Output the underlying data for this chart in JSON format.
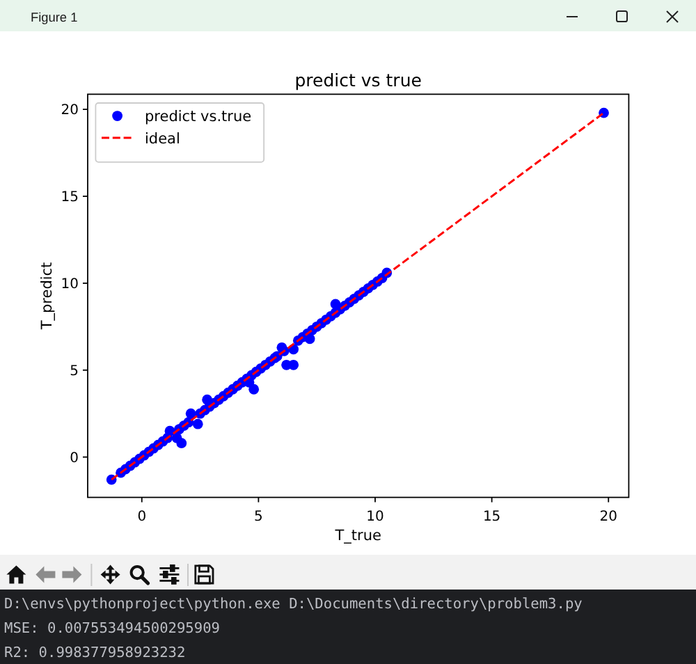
{
  "chart_data": {
    "type": "scatter",
    "title": "predict vs true",
    "xlabel": "T_true",
    "ylabel": "T_predict",
    "xlim": [
      -2.32,
      20.87
    ],
    "ylim": [
      -2.32,
      20.87
    ],
    "xticks": [
      0,
      5,
      10,
      15,
      20
    ],
    "yticks": [
      0,
      5,
      10,
      15,
      20
    ],
    "legend": "top left",
    "annotations": [
      "Figure 1",
      "D:\\envs\\pythonproject\\python.exe D:\\Documents\\directory\\problem3.py",
      "MSE: 0.007553494500295909",
      "R2: 0.998377958923232"
    ],
    "series": [
      {
        "name": "predict vs.true",
        "color": "#0000ff",
        "marker": "circle",
        "x": [
          -1.3,
          -0.9,
          -0.7,
          -0.5,
          -0.3,
          -0.1,
          0.1,
          0.3,
          0.5,
          0.7,
          0.9,
          1.1,
          1.2,
          1.5,
          1.6,
          1.7,
          1.8,
          2.0,
          2.1,
          2.4,
          2.5,
          2.7,
          2.8,
          2.9,
          3.1,
          3.3,
          3.5,
          3.7,
          3.9,
          4.1,
          4.3,
          4.5,
          4.6,
          4.8,
          4.7,
          4.9,
          5.1,
          5.3,
          5.5,
          5.7,
          5.8,
          6.0,
          6.1,
          6.2,
          6.5,
          6.5,
          6.7,
          6.9,
          7.1,
          7.2,
          7.3,
          7.5,
          7.7,
          7.9,
          8.1,
          8.3,
          8.3,
          8.5,
          8.7,
          8.9,
          9.1,
          9.3,
          9.5,
          9.7,
          9.9,
          10.1,
          10.3,
          10.5,
          19.8
        ],
        "values": [
          -1.3,
          -0.9,
          -0.7,
          -0.5,
          -0.3,
          -0.1,
          0.1,
          0.3,
          0.5,
          0.7,
          0.9,
          1.1,
          1.5,
          1.1,
          1.6,
          0.8,
          1.8,
          2.0,
          2.5,
          1.9,
          2.5,
          2.7,
          3.3,
          2.9,
          3.1,
          3.3,
          3.5,
          3.7,
          3.9,
          4.1,
          4.3,
          4.5,
          4.3,
          3.9,
          4.7,
          4.9,
          5.1,
          5.3,
          5.5,
          5.7,
          5.8,
          6.3,
          6.1,
          5.3,
          5.3,
          6.2,
          6.7,
          6.9,
          7.1,
          6.8,
          7.3,
          7.5,
          7.7,
          7.9,
          8.1,
          8.8,
          8.3,
          8.5,
          8.7,
          8.9,
          9.1,
          9.3,
          9.5,
          9.7,
          9.9,
          10.1,
          10.3,
          10.6,
          19.8
        ]
      },
      {
        "name": "ideal",
        "type": "line",
        "color": "#ff0000",
        "line_style": "dashed",
        "x": [
          -1.3,
          19.8
        ],
        "values": [
          -1.3,
          19.8
        ]
      }
    ]
  }
}
